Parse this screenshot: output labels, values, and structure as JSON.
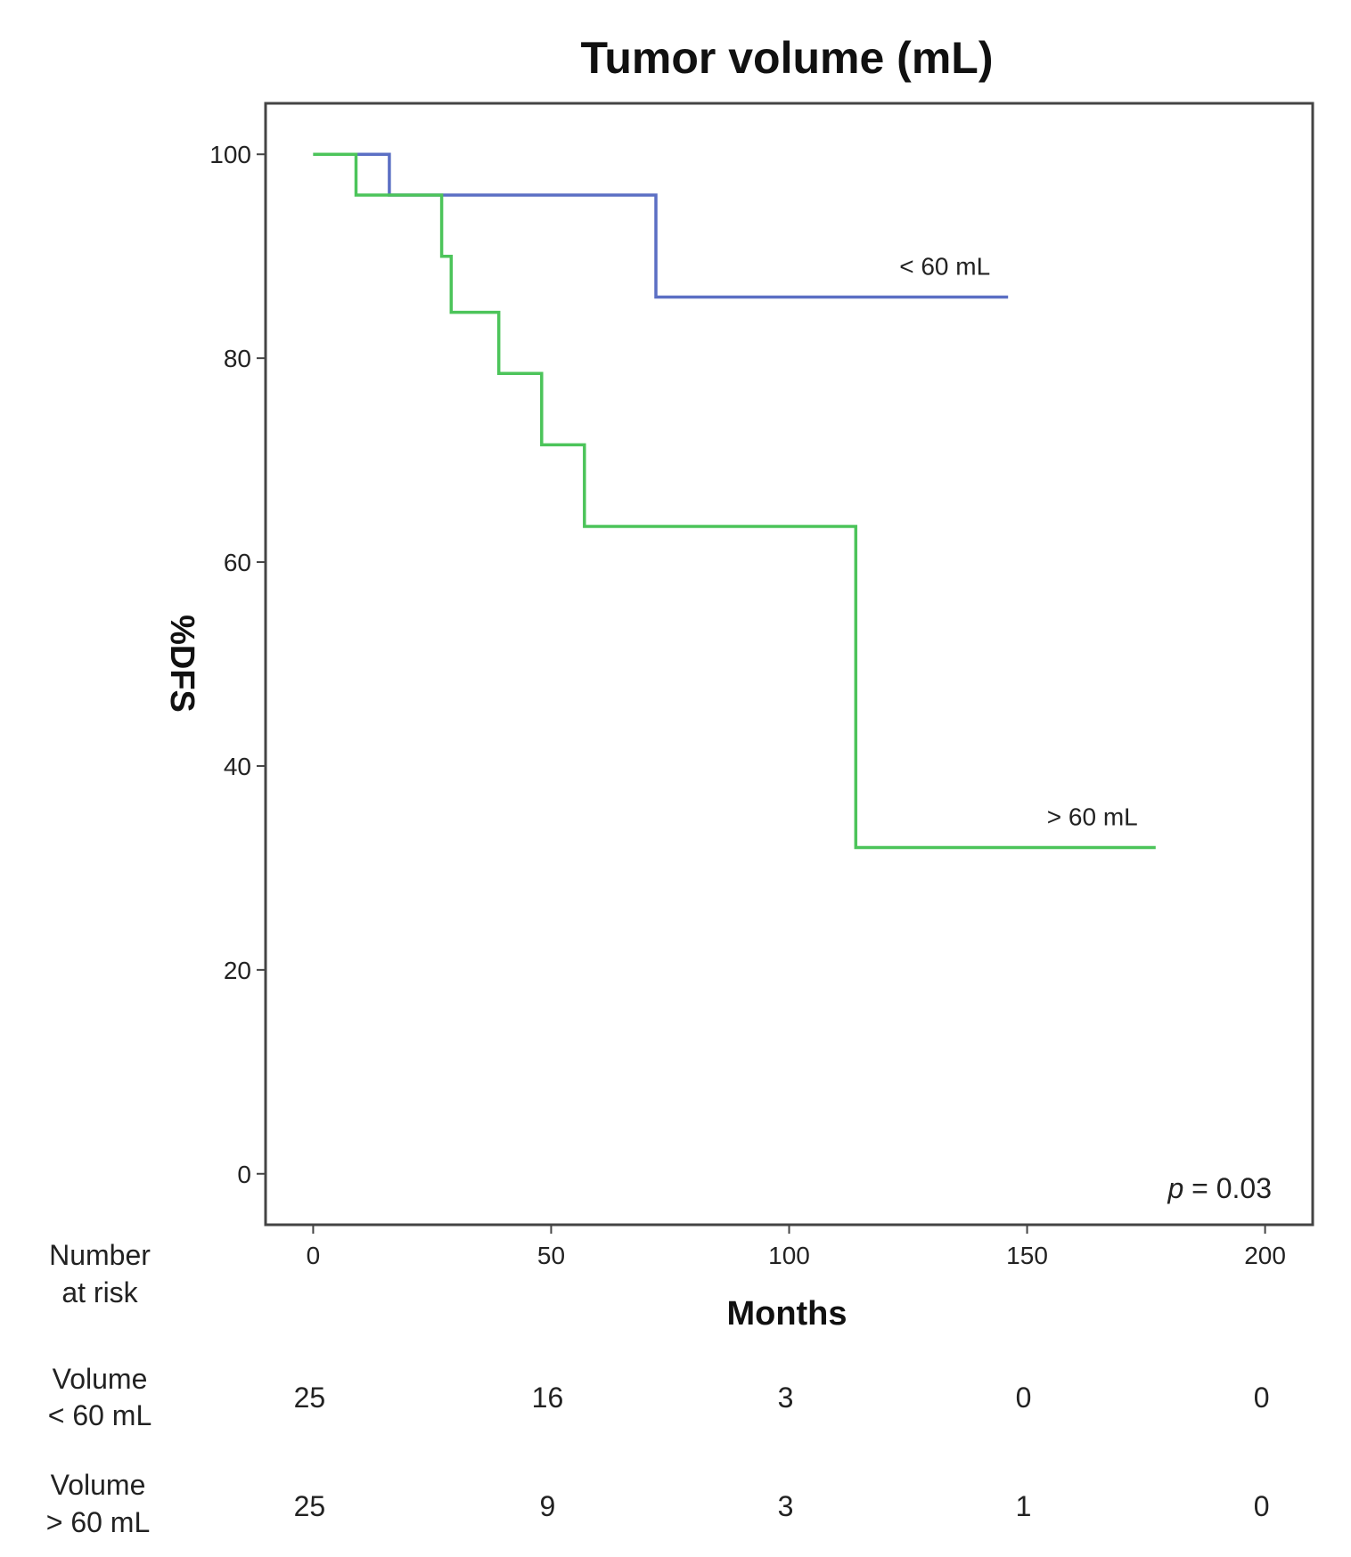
{
  "chart_data": {
    "type": "line",
    "title": "Tumor volume (mL)",
    "xlabel": "Months",
    "ylabel": "%DFS",
    "xlim": [
      -10,
      210
    ],
    "ylim": [
      -5,
      105
    ],
    "x_ticks": [
      0,
      50,
      100,
      150,
      200
    ],
    "y_ticks": [
      0,
      20,
      40,
      60,
      80,
      100
    ],
    "grid": false,
    "series": [
      {
        "name": "< 60 mL",
        "color": "#5b6fc4",
        "step": true,
        "points": [
          [
            0,
            100
          ],
          [
            16,
            100
          ],
          [
            16,
            96
          ],
          [
            72,
            96
          ],
          [
            72,
            86
          ],
          [
            146,
            86
          ]
        ]
      },
      {
        "name": "> 60 mL",
        "color": "#4cc45a",
        "step": true,
        "points": [
          [
            0,
            100
          ],
          [
            9,
            100
          ],
          [
            9,
            96
          ],
          [
            27,
            96
          ],
          [
            27,
            90
          ],
          [
            29,
            90
          ],
          [
            29,
            84.5
          ],
          [
            39,
            84.5
          ],
          [
            39,
            78.5
          ],
          [
            48,
            78.5
          ],
          [
            48,
            71.5
          ],
          [
            57,
            71.5
          ],
          [
            57,
            63.5
          ],
          [
            114,
            63.5
          ],
          [
            114,
            32
          ],
          [
            177,
            32
          ]
        ]
      }
    ],
    "annotation": {
      "p_italic": "p",
      "p_rest": " = 0.03"
    },
    "risk_table": {
      "header": [
        "Number",
        "at risk"
      ],
      "rows": [
        {
          "label": [
            "Volume",
            "< 60 mL"
          ],
          "values": [
            "25",
            "16",
            "3",
            "0",
            "0"
          ]
        },
        {
          "label": [
            "Volume",
            "> 60 mL"
          ],
          "values": [
            "25",
            "9",
            "3",
            "1",
            "0"
          ]
        }
      ]
    }
  }
}
